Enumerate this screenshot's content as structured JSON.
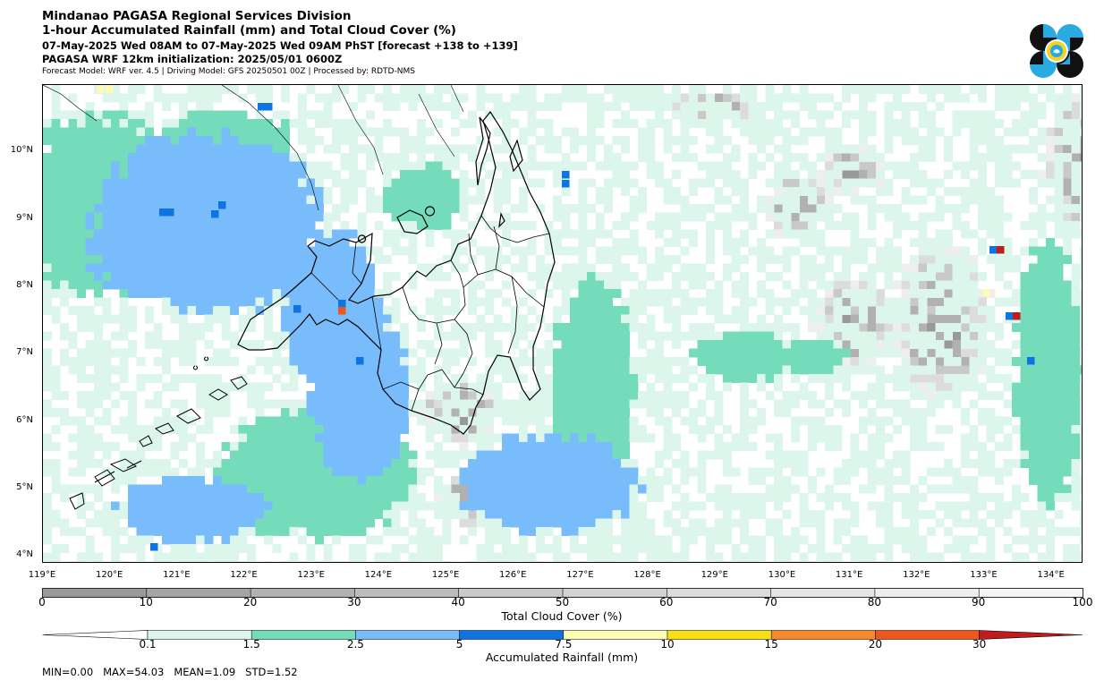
{
  "header": {
    "line1": "Mindanao PAGASA Regional Services Division",
    "line2": "1-hour Accumulated Rainfall (mm) and Total Cloud Cover (%)",
    "line3": "07-May-2025 Wed 08AM to 07-May-2025 Wed 09AM PhST [forecast +138 to +139]",
    "line4": "PAGASA WRF 12km initialization: 2025/05/01 0600Z",
    "line5": "Forecast Model: WRF ver. 4.5 | Driving Model: GFS 20250501 00Z | Processed by: RDTD-NMS"
  },
  "logo": {
    "icon": "pagasa-logo-icon",
    "colors": [
      "#111111",
      "#29abe2",
      "#f6d21b"
    ]
  },
  "map": {
    "lat_labels": [
      "10°N",
      "9°N",
      "8°N",
      "7°N",
      "6°N",
      "5°N",
      "4°N"
    ],
    "lat_values": [
      10,
      9,
      8,
      7,
      6,
      5,
      4
    ],
    "lon_labels": [
      "119°E",
      "120°E",
      "121°E",
      "122°E",
      "123°E",
      "124°E",
      "125°E",
      "126°E",
      "127°E",
      "128°E",
      "129°E",
      "130°E",
      "131°E",
      "132°E",
      "133°E",
      "134°E"
    ],
    "lon_values": [
      119,
      120,
      121,
      122,
      123,
      124,
      125,
      126,
      127,
      128,
      129,
      130,
      131,
      132,
      133,
      134
    ],
    "lat_range": [
      3.9,
      11.0
    ],
    "lon_range": [
      119.0,
      134.47
    ]
  },
  "cloud_colorbar": {
    "title": "Total Cloud Cover (%)",
    "ticks": [
      "0",
      "10",
      "20",
      "30",
      "40",
      "50",
      "60",
      "70",
      "80",
      "90",
      "100"
    ],
    "colors": [
      "#999999",
      "#a5a5a5",
      "#b1b1b1",
      "#bdbdbd",
      "#c9c9c9",
      "#d3d3d3",
      "#dcdcdc",
      "#e5e5e5",
      "#eeeeee",
      "#f6f6f6"
    ]
  },
  "rain_colorbar": {
    "title": "Accumulated Rainfall (mm)",
    "ticks": [
      "0.1",
      "1.5",
      "2.5",
      "5",
      "7.5",
      "10",
      "15",
      "20",
      "30"
    ],
    "colors": [
      "#ddf6ec",
      "#74dcbb",
      "#78bcfb",
      "#0e74e2",
      "#fdfcb4",
      "#f7df16",
      "#f48a2a",
      "#ee571b",
      "#c11b1b"
    ]
  },
  "stats": {
    "text": "MIN=0.00   MAX=54.03   MEAN=1.09   STD=1.52"
  }
}
